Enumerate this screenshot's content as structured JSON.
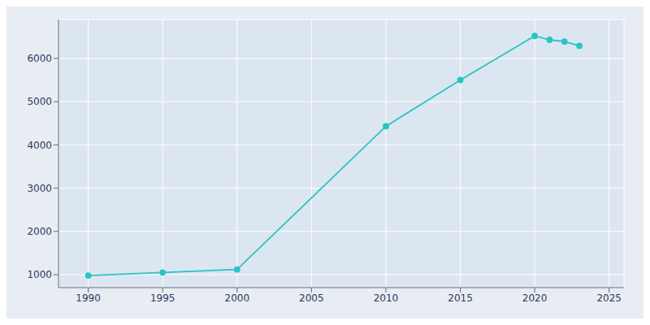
{
  "chart_data": {
    "type": "line",
    "x": [
      1990,
      1995,
      2000,
      2010,
      2015,
      2020,
      2021,
      2022,
      2023
    ],
    "values": [
      980,
      1050,
      1120,
      4430,
      5500,
      6520,
      6430,
      6390,
      6290
    ],
    "color": "#2ac4c4",
    "marker": "circle",
    "xlim": [
      1988,
      2026
    ],
    "ylim": [
      700,
      6900
    ],
    "xticks": [
      1990,
      1995,
      2000,
      2005,
      2010,
      2015,
      2020,
      2025
    ],
    "yticks": [
      1000,
      2000,
      3000,
      4000,
      5000,
      6000
    ],
    "grid": true
  }
}
